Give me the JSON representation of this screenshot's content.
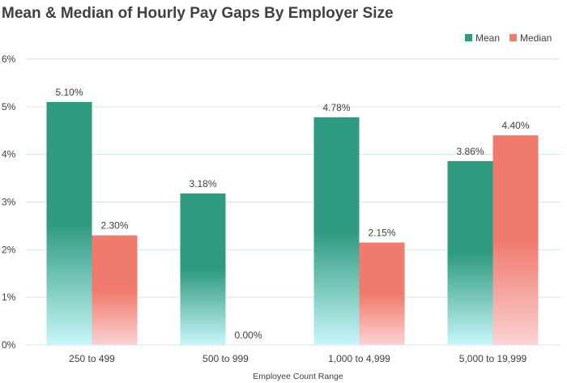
{
  "chart_data": {
    "type": "bar",
    "title": "Mean & Median of Hourly Pay Gaps By Employer Size",
    "xlabel": "Employee Count Range",
    "ylabel": "",
    "categories": [
      "250 to 499",
      "500 to 999",
      "1,000 to 4,999",
      "5,000 to 19,999"
    ],
    "series": [
      {
        "name": "Mean",
        "values": [
          5.1,
          3.18,
          4.78,
          3.86
        ],
        "labels": [
          "5.10%",
          "3.18%",
          "4.78%",
          "3.86%"
        ],
        "color_top": "#2e9a7f",
        "color_bottom": "#c8f6fa"
      },
      {
        "name": "Median",
        "values": [
          2.3,
          0.0,
          2.15,
          4.4
        ],
        "labels": [
          "2.30%",
          "0.00%",
          "2.15%",
          "4.40%"
        ],
        "color_top": "#f07a6c",
        "color_bottom": "#fcd2d2"
      }
    ],
    "ylim": [
      0,
      6
    ],
    "yticks": [
      0,
      1,
      2,
      3,
      4,
      5,
      6
    ],
    "ytick_labels": [
      "0%",
      "1%",
      "2%",
      "3%",
      "4%",
      "5%",
      "6%"
    ],
    "grid": true,
    "legend_position": "top-right"
  }
}
